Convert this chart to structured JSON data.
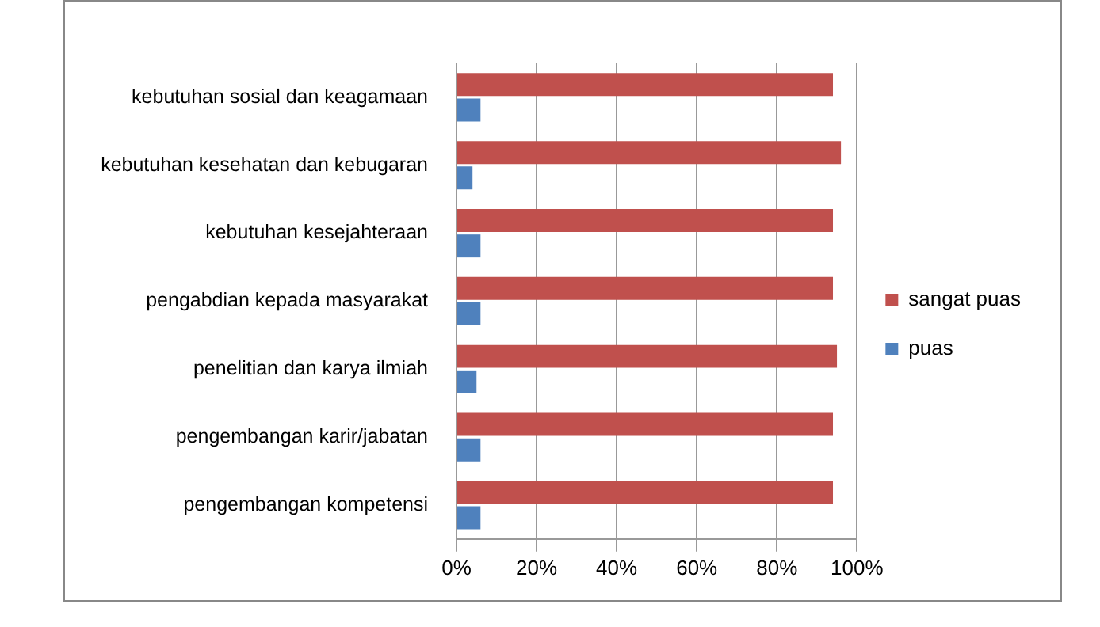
{
  "chart_data": {
    "type": "bar",
    "orientation": "horizontal",
    "categories": [
      "kebutuhan sosial dan keagamaan",
      "kebutuhan kesehatan dan kebugaran",
      "kebutuhan kesejahteraan",
      "pengabdian kepada masyarakat",
      "penelitian dan karya ilmiah",
      "pengembangan karir/jabatan",
      "pengembangan kompetensi"
    ],
    "series": [
      {
        "name": "sangat puas",
        "color": "#c0504d",
        "values": [
          94,
          96,
          94,
          94,
          95,
          94,
          94
        ]
      },
      {
        "name": "puas",
        "color": "#4f81bd",
        "values": [
          6,
          4,
          6,
          6,
          5,
          6,
          6
        ]
      }
    ],
    "xlim": [
      0,
      100
    ],
    "xticks": [
      {
        "value": 0,
        "label": "0%"
      },
      {
        "value": 20,
        "label": "20%"
      },
      {
        "value": 40,
        "label": "40%"
      },
      {
        "value": 60,
        "label": "60%"
      },
      {
        "value": 80,
        "label": "80%"
      },
      {
        "value": 100,
        "label": "100%"
      }
    ],
    "grid": "x",
    "legend": "right"
  }
}
